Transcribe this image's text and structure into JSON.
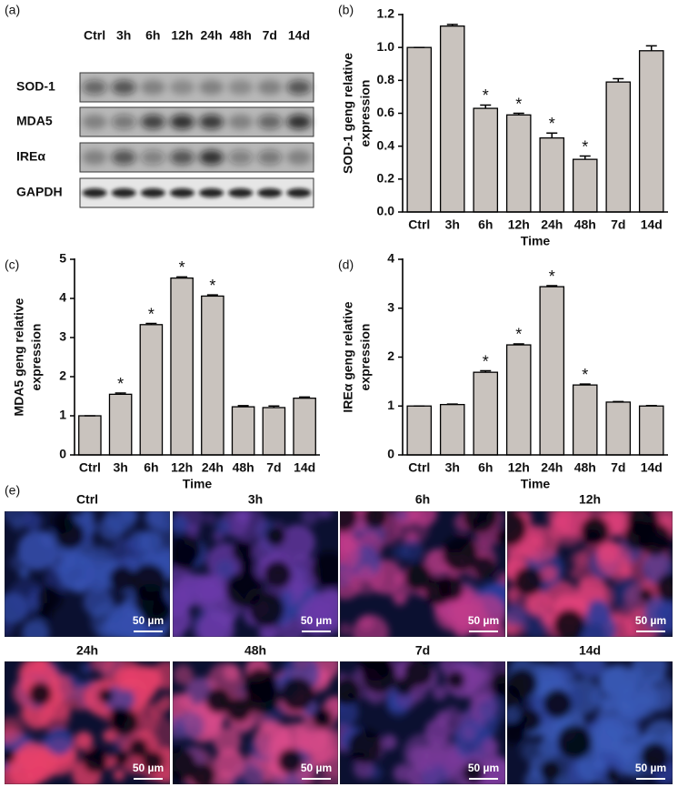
{
  "blot": {
    "panel_label": "(a)",
    "lanes": [
      "Ctrl",
      "3h",
      "6h",
      "12h",
      "24h",
      "48h",
      "7d",
      "14d"
    ],
    "rows": [
      "SOD-1",
      "MDA5",
      "IREα",
      "GAPDH"
    ]
  },
  "chart_data": [
    {
      "type": "bar",
      "panel_label": "(b)",
      "ylabel": [
        "SOD-1 geng relative",
        "expression"
      ],
      "xlabel": "Time",
      "categories": [
        "Ctrl",
        "3h",
        "6h",
        "12h",
        "24h",
        "48h",
        "7d",
        "14d"
      ],
      "values": [
        1.0,
        1.13,
        0.63,
        0.59,
        0.45,
        0.32,
        0.79,
        0.98
      ],
      "errors": [
        0,
        0.01,
        0.02,
        0.01,
        0.03,
        0.02,
        0.02,
        0.03
      ],
      "significance": [
        null,
        null,
        "*",
        "*",
        "*",
        "*",
        null,
        null
      ],
      "color": "#c9c3be",
      "edgecolor": "#000000",
      "ylim": [
        0,
        1.2
      ],
      "yticks": [
        {
          "value": 0,
          "label": "0.0"
        },
        0.2,
        0.4,
        0.6,
        0.8,
        {
          "value": 1,
          "label": "1.0"
        },
        1.2
      ]
    },
    {
      "type": "bar",
      "panel_label": "(c)",
      "ylabel": [
        "MDA5 geng relative",
        "expression"
      ],
      "xlabel": "Time",
      "categories": [
        "Ctrl",
        "3h",
        "6h",
        "12h",
        "24h",
        "48h",
        "7d",
        "14d"
      ],
      "values": [
        1.0,
        1.55,
        3.33,
        4.52,
        4.06,
        1.23,
        1.21,
        1.45
      ],
      "errors": [
        0,
        0.03,
        0.03,
        0.03,
        0.03,
        0.03,
        0.04,
        0.03
      ],
      "significance": [
        null,
        "*",
        "*",
        "*",
        "*",
        null,
        null,
        null
      ],
      "color": "#c9c3be",
      "edgecolor": "#000000",
      "ylim": [
        0,
        5
      ],
      "yticks": [
        0,
        1,
        2,
        3,
        4,
        5
      ]
    },
    {
      "type": "bar",
      "panel_label": "(d)",
      "ylabel": [
        "IREα geng relative",
        "expression"
      ],
      "xlabel": "Time",
      "categories": [
        "Ctrl",
        "3h",
        "6h",
        "12h",
        "24h",
        "48h",
        "7d",
        "14d"
      ],
      "values": [
        1.0,
        1.03,
        1.69,
        2.25,
        3.44,
        1.43,
        1.08,
        1.0
      ],
      "errors": [
        0,
        0.01,
        0.03,
        0.02,
        0.02,
        0.02,
        0.01,
        0.01
      ],
      "significance": [
        null,
        null,
        "*",
        "*",
        "*",
        "*",
        null,
        null
      ],
      "color": "#c9c3be",
      "edgecolor": "#000000",
      "ylim": [
        0,
        4
      ],
      "yticks": [
        0,
        1,
        2,
        3,
        4
      ]
    }
  ],
  "micrographs": {
    "panel_label": "(e)",
    "scale_bar": "50 µm",
    "panels": [
      {
        "label": "Ctrl",
        "color": "#3550b0"
      },
      {
        "label": "3h",
        "color": "#6a3aa8"
      },
      {
        "label": "6h",
        "color": "#c03a8a"
      },
      {
        "label": "12h",
        "color": "#e0407a"
      },
      {
        "label": "24h",
        "color": "#e8406a"
      },
      {
        "label": "48h",
        "color": "#d84a8a"
      },
      {
        "label": "7d",
        "color": "#7a3a9a"
      },
      {
        "label": "14d",
        "color": "#3a5ab8"
      }
    ]
  }
}
